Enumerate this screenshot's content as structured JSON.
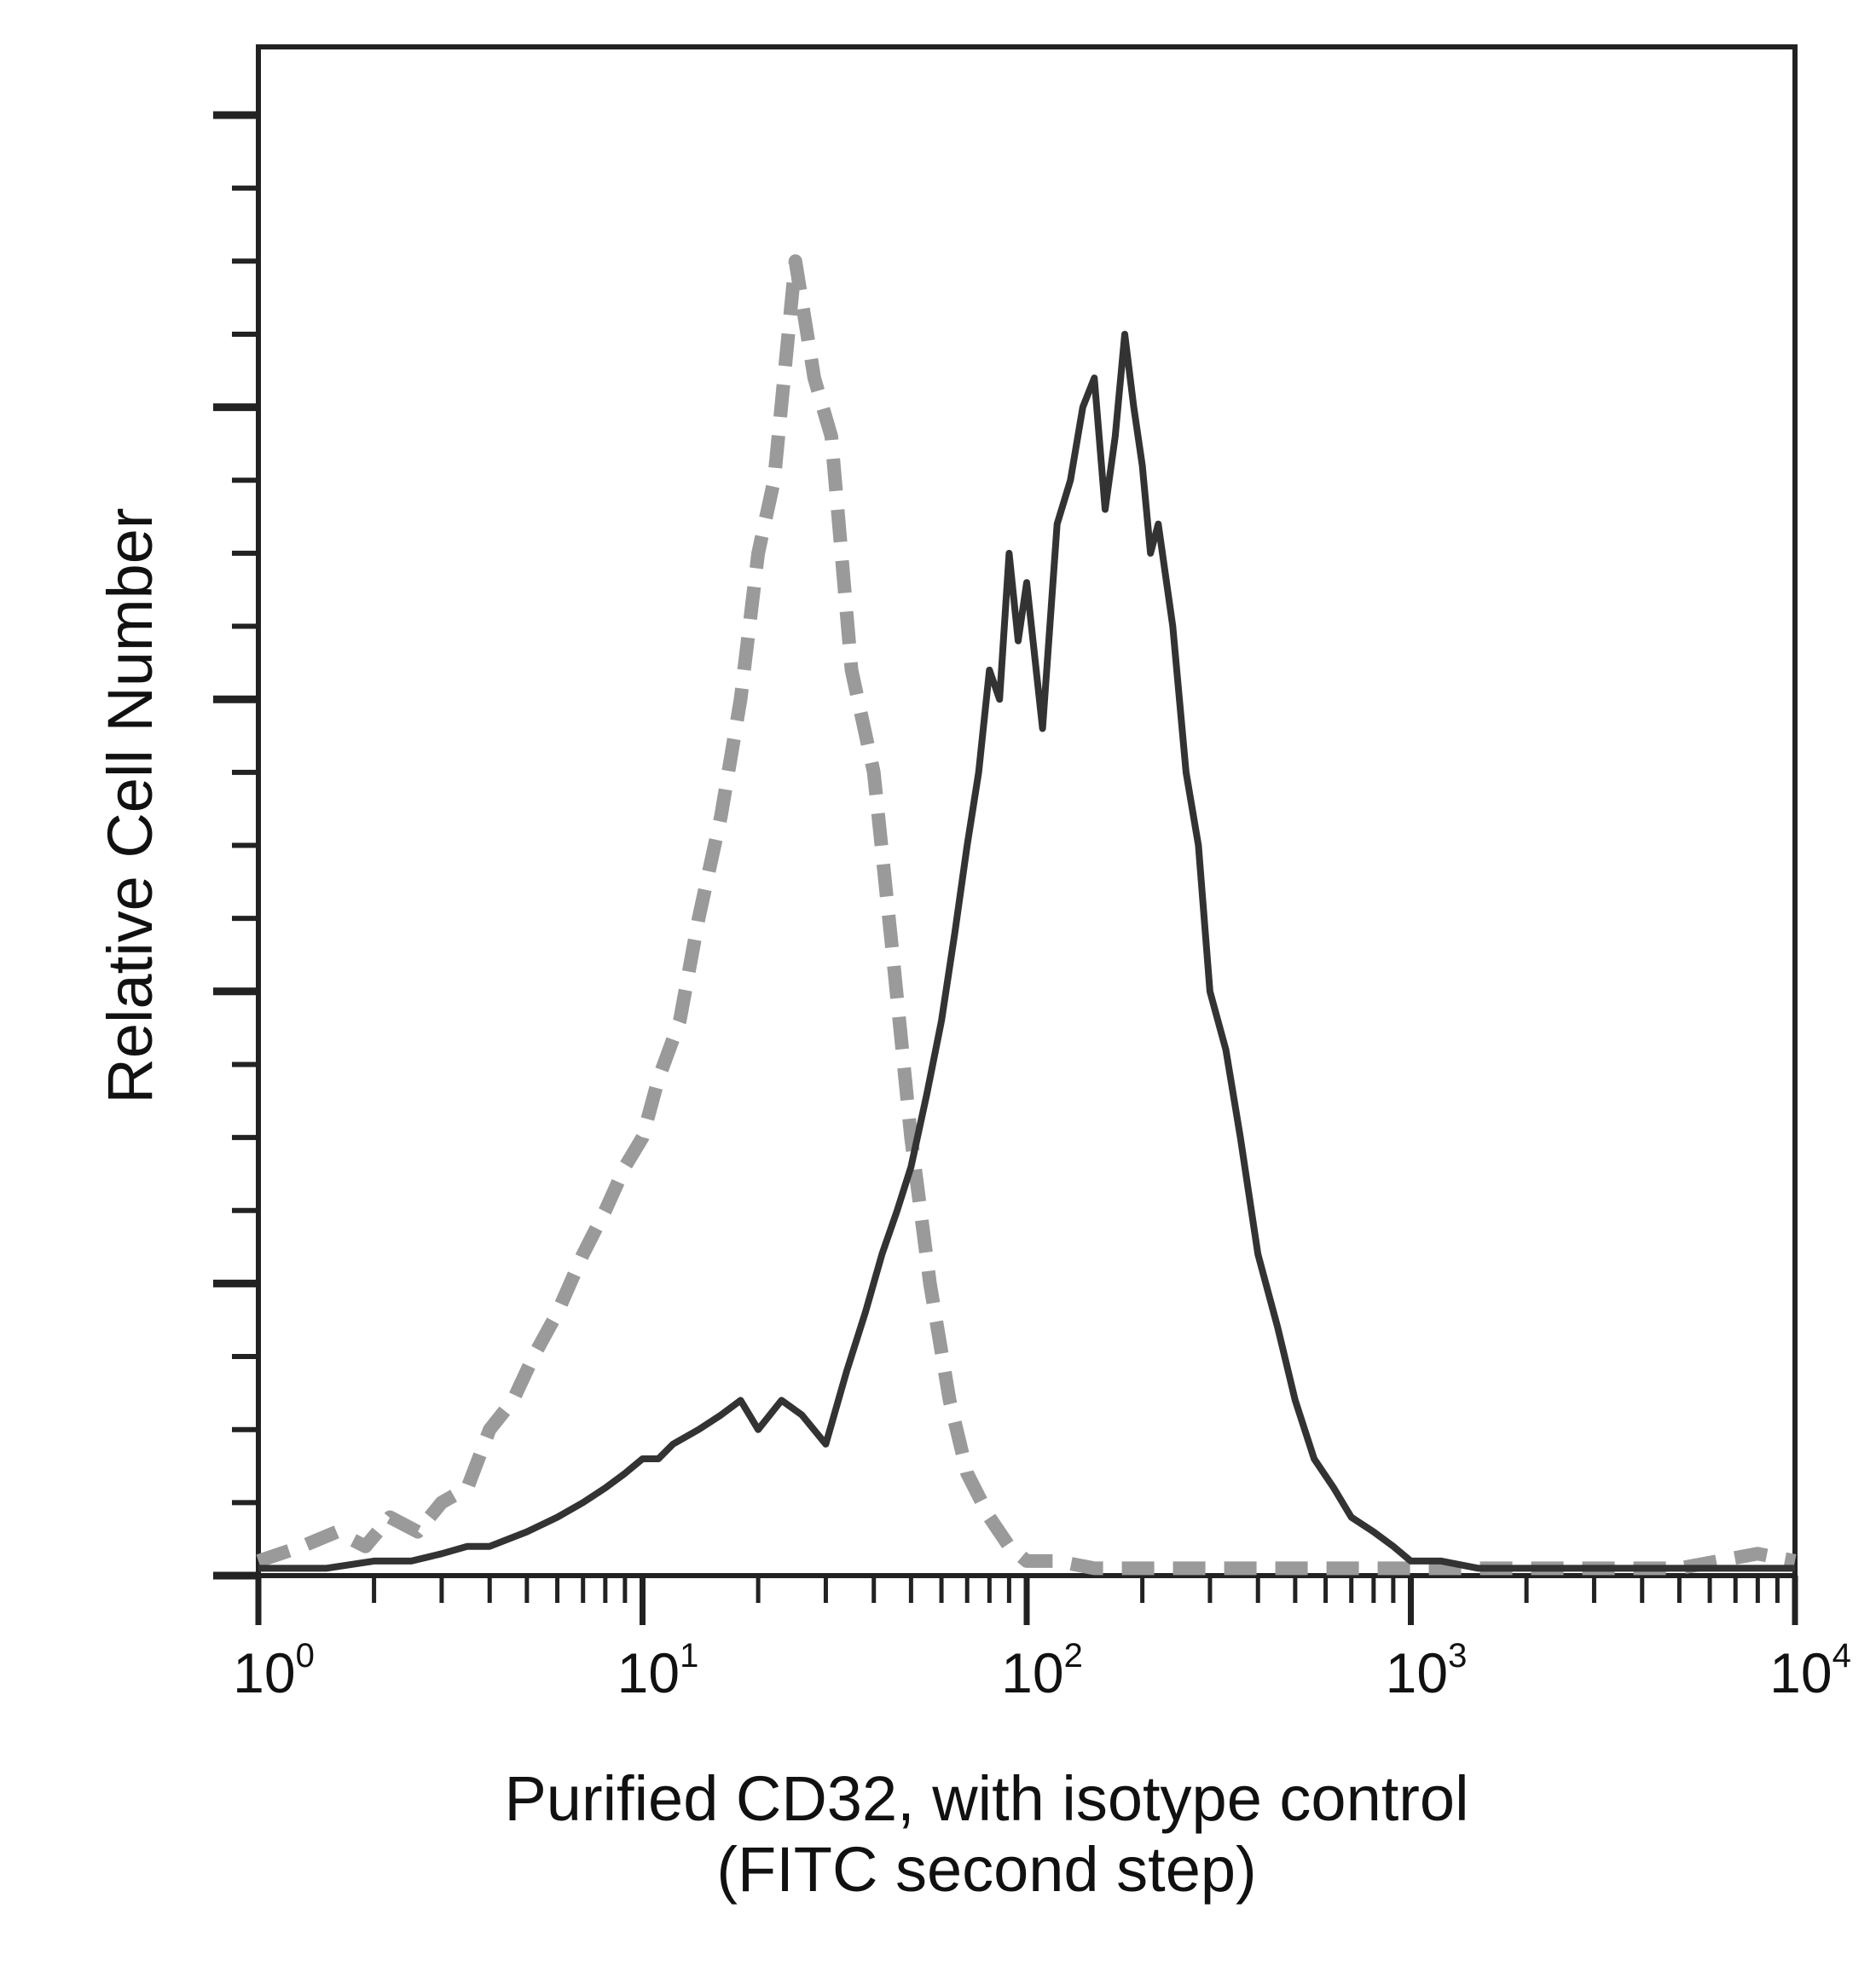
{
  "chart_data": {
    "type": "line",
    "title": "",
    "xlabel_lines": [
      "Purified CD32, with isotype control",
      "(FITC second step)"
    ],
    "ylabel": "Relative Cell Number",
    "x_scale": "log",
    "xlim": [
      1,
      10000
    ],
    "ylim": [
      0,
      100
    ],
    "y_tick_labels_shown": false,
    "grid": false,
    "legend": "none",
    "x_ticks": [
      {
        "value": 1,
        "base": "10",
        "exp": "0"
      },
      {
        "value": 10,
        "base": "10",
        "exp": "1"
      },
      {
        "value": 100,
        "base": "10",
        "exp": "2"
      },
      {
        "value": 1000,
        "base": "10",
        "exp": "3"
      },
      {
        "value": 10000,
        "base": "10",
        "exp": "4"
      }
    ],
    "series": [
      {
        "style": "dashed",
        "color": "#9a9a9a",
        "x": [
          1,
          1.3,
          1.6,
          1.9,
          2.2,
          2.6,
          3,
          3.5,
          4,
          4.6,
          5.2,
          6,
          7,
          8,
          9,
          10,
          11,
          12.5,
          14,
          16,
          18,
          20,
          22,
          25,
          28,
          31,
          35,
          40,
          45,
          50,
          56,
          63,
          70,
          80,
          90,
          100,
          120,
          150,
          200,
          300,
          500,
          1000,
          2000,
          5000,
          8000,
          10000
        ],
        "y": [
          1,
          2,
          3,
          2,
          4,
          3,
          5,
          6,
          10,
          12,
          15,
          18,
          22,
          25,
          28,
          30,
          34,
          38,
          45,
          52,
          60,
          70,
          75,
          90,
          82,
          78,
          62,
          55,
          42,
          30,
          20,
          12,
          7,
          4,
          2,
          1,
          1,
          0.5,
          0.5,
          0.5,
          0.5,
          0.5,
          0.5,
          0.5,
          1.5,
          1
        ]
      },
      {
        "style": "solid",
        "color": "#333333",
        "x": [
          1,
          1.5,
          2,
          2.5,
          3,
          3.5,
          4,
          5,
          6,
          7,
          8,
          9,
          10,
          11,
          12,
          14,
          16,
          18,
          20,
          23,
          26,
          30,
          34,
          38,
          42,
          46,
          50,
          55,
          60,
          65,
          70,
          75,
          80,
          85,
          90,
          95,
          100,
          110,
          120,
          130,
          140,
          150,
          160,
          170,
          180,
          190,
          200,
          210,
          220,
          240,
          260,
          280,
          300,
          330,
          360,
          400,
          450,
          500,
          560,
          630,
          700,
          800,
          900,
          1000,
          1200,
          1500,
          2000,
          5000,
          10000
        ],
        "y": [
          0.5,
          0.5,
          1,
          1,
          1.5,
          2,
          2,
          3,
          4,
          5,
          6,
          7,
          8,
          8,
          9,
          10,
          11,
          12,
          10,
          12,
          11,
          9,
          14,
          18,
          22,
          25,
          28,
          33,
          38,
          44,
          50,
          55,
          62,
          60,
          70,
          64,
          68,
          58,
          72,
          75,
          80,
          82,
          73,
          78,
          85,
          80,
          76,
          70,
          72,
          65,
          55,
          50,
          40,
          36,
          30,
          22,
          17,
          12,
          8,
          6,
          4,
          3,
          2,
          1,
          1,
          0.5,
          0.5,
          0.5,
          0.5
        ]
      }
    ]
  }
}
